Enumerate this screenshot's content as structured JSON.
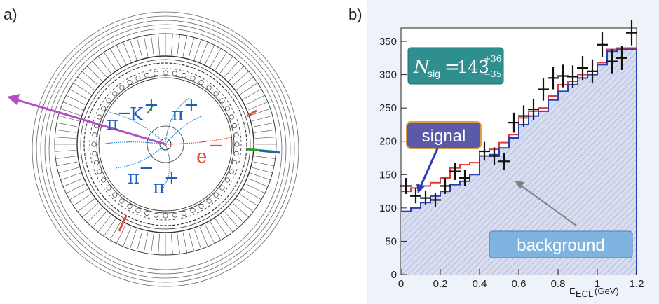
{
  "panel_a": {
    "label": "a)",
    "particles": {
      "pi_minus_top": "π",
      "pi_minus_top_sup": "−",
      "kaon": "K",
      "kaon_sup": "+",
      "pi_plus_top": "π",
      "pi_plus_top_sup": "+",
      "electron": "e",
      "electron_sup": "−",
      "pi_minus_bottom": "π",
      "pi_minus_bottom_sup": "−",
      "pi_plus_bottom": "π",
      "pi_plus_bottom_sup": "+"
    },
    "colors": {
      "missing_momentum_arrow": "#b44fc4",
      "hadron_label": "#1d5fbf",
      "electron_label": "#e8492a"
    }
  },
  "panel_b": {
    "label": "b)",
    "nsig_box": {
      "symbol": "N",
      "subscript": "sig",
      "equals": "=",
      "value": "143",
      "err_up": "+36",
      "err_down": "−35"
    },
    "signal_box": "signal",
    "background_box": "background",
    "colors": {
      "nsig_bg": "#2f8f8f",
      "signal_bg": "#5a5aa8",
      "signal_border": "#e0a040",
      "background_bg": "#7fb4e0",
      "total_line": "#e03a3a",
      "background_line": "#2a3fb0",
      "points": "#111111",
      "hatch": "#a9b3d6"
    }
  },
  "chart_data": {
    "type": "histogram",
    "xlabel_main": "E",
    "xlabel_sub": "ECL",
    "xlabel_unit": "(GeV)",
    "ylabel": "",
    "xlim": [
      0,
      1.2
    ],
    "ylim": [
      0,
      370
    ],
    "xticks": [
      0,
      0.2,
      0.4,
      0.6,
      0.8,
      1,
      1.2
    ],
    "xtick_labels": [
      "0",
      "0.2",
      "0.4",
      "0.6",
      "0.8",
      "1",
      "1.2"
    ],
    "yticks": [
      0,
      50,
      100,
      150,
      200,
      250,
      300,
      350
    ],
    "ytick_labels": [
      "0",
      "50",
      "100",
      "150",
      "200",
      "250",
      "300",
      "350"
    ],
    "bin_edges": [
      0,
      0.05,
      0.1,
      0.15,
      0.2,
      0.25,
      0.3,
      0.35,
      0.4,
      0.45,
      0.5,
      0.55,
      0.6,
      0.65,
      0.7,
      0.75,
      0.8,
      0.85,
      0.9,
      0.95,
      1.0,
      1.05,
      1.1,
      1.15,
      1.2
    ],
    "background": [
      95,
      100,
      108,
      118,
      125,
      135,
      140,
      150,
      178,
      180,
      190,
      205,
      225,
      238,
      245,
      262,
      275,
      285,
      295,
      300,
      315,
      335,
      338,
      338
    ],
    "total": [
      125,
      130,
      133,
      138,
      145,
      160,
      165,
      168,
      185,
      188,
      198,
      210,
      235,
      245,
      250,
      268,
      285,
      290,
      300,
      305,
      318,
      338,
      340,
      340
    ],
    "data_x": [
      0.025,
      0.075,
      0.125,
      0.175,
      0.225,
      0.275,
      0.325,
      0.425,
      0.475,
      0.525,
      0.575,
      0.625,
      0.675,
      0.725,
      0.775,
      0.825,
      0.875,
      0.925,
      0.975,
      1.025,
      1.075,
      1.125,
      1.175
    ],
    "data_y": [
      133,
      118,
      115,
      112,
      133,
      155,
      145,
      185,
      178,
      170,
      228,
      238,
      248,
      278,
      295,
      298,
      297,
      310,
      305,
      345,
      320,
      325,
      363
    ],
    "data_err": [
      12,
      11,
      11,
      11,
      12,
      13,
      12,
      14,
      13,
      13,
      15,
      16,
      16,
      17,
      17,
      17,
      17,
      18,
      18,
      19,
      18,
      18,
      19
    ]
  }
}
